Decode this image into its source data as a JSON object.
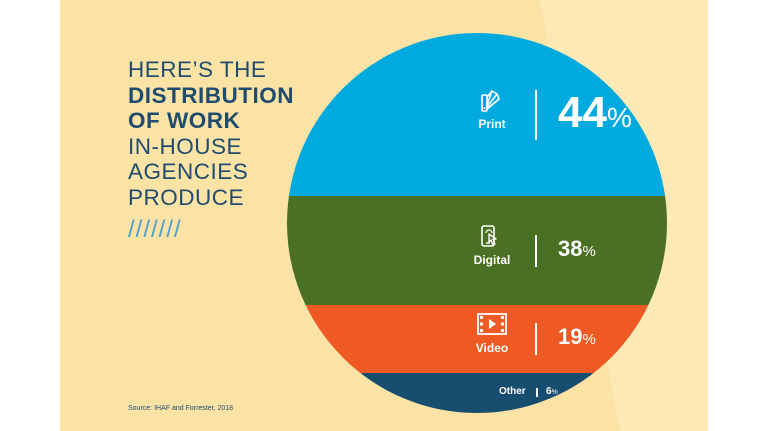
{
  "headline": {
    "line1": "HERE’S THE",
    "line2": "DISTRIBUTION",
    "line3": "OF WORK",
    "line4": "IN-HOUSE",
    "line5": "AGENCIES",
    "line6": "PRODUCE"
  },
  "decor_slashes": "///////",
  "source": "Source: IHAF and Forrester, 2018",
  "colors": {
    "background": "#fbe3a6",
    "headline": "#1f4b6e",
    "slashes": "#4b9fc7",
    "print": "#00a9de",
    "digital": "#4a7123",
    "video": "#ef5a24",
    "other": "#174d6e"
  },
  "chart_data": {
    "type": "pie",
    "title": "HERE’S THE DISTRIBUTION OF WORK IN-HOUSE AGENCIES PRODUCE",
    "categories": [
      "Print",
      "Digital",
      "Video",
      "Other"
    ],
    "values": [
      44,
      38,
      19,
      6
    ],
    "value_labels": [
      "44",
      "38",
      "19",
      "6"
    ],
    "unit": "%",
    "icons": [
      "print-swatch-icon",
      "digital-phone-icon",
      "video-film-icon",
      ""
    ],
    "colors": [
      "#00a9de",
      "#4a7123",
      "#ef5a24",
      "#174d6e"
    ]
  }
}
